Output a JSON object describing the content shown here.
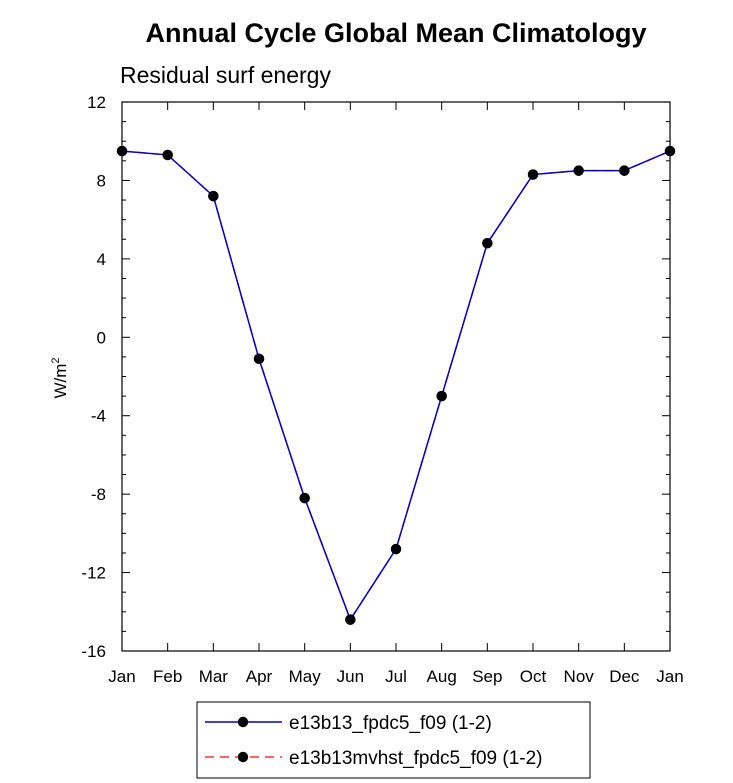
{
  "chart_data": {
    "type": "line",
    "title": "Annual Cycle Global Mean Climatology",
    "subtitle": "Residual surf energy",
    "ylabel": "W/m",
    "ylabel_sup": "2",
    "xlabel": "",
    "categories": [
      "Jan",
      "Feb",
      "Mar",
      "Apr",
      "May",
      "Jun",
      "Jul",
      "Aug",
      "Sep",
      "Oct",
      "Nov",
      "Dec",
      "Jan"
    ],
    "ylim": [
      -16,
      12
    ],
    "yticks": [
      12,
      8,
      4,
      0,
      -4,
      -8,
      -12,
      -16
    ],
    "ytick_labels": [
      "12",
      "8",
      "4",
      "0",
      "-4",
      "-8",
      "-12",
      "-16"
    ],
    "grid": false,
    "legend_position": "bottom",
    "series": [
      {
        "name": "e13b13_fpdc5_f09 (1-2)",
        "color": "#0000cc",
        "line_style": "solid",
        "marker": "circle",
        "values": [
          9.5,
          9.3,
          7.2,
          -1.1,
          -8.2,
          -14.4,
          -10.8,
          -3.0,
          4.8,
          8.3,
          8.5,
          8.5,
          9.5
        ]
      },
      {
        "name": "e13b13mvhst_fpdc5_f09 (1-2)",
        "color": "#ff3333",
        "line_style": "dashed",
        "marker": "circle",
        "values": [
          9.5,
          9.3,
          7.2,
          -1.1,
          -8.2,
          -14.4,
          -10.8,
          -3.0,
          4.8,
          8.3,
          8.5,
          8.5,
          9.5
        ]
      }
    ]
  }
}
